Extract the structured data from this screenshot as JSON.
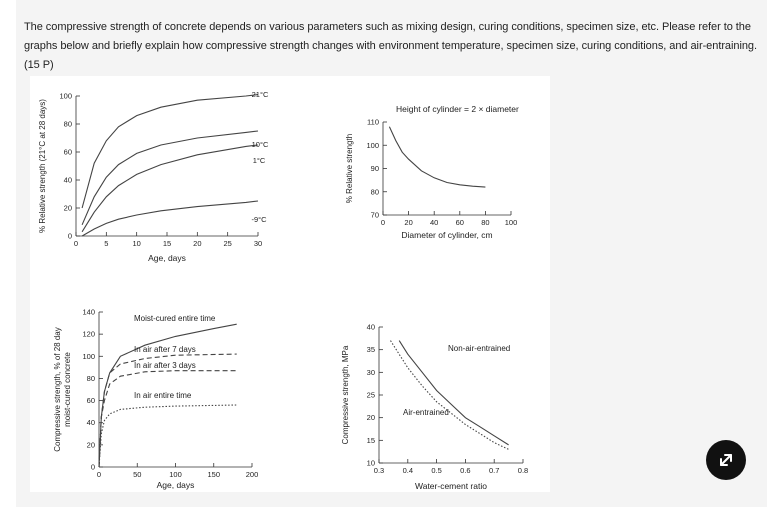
{
  "question": {
    "text": "The compressive strength of concrete depends on various parameters such as mixing design, curing conditions, specimen size, etc. Please refer to the graphs below and briefly explain how compressive strength changes with environment temperature, specimen size, curing conditions, and air-entraining. (15 P)"
  },
  "expand_button": {
    "icon": "expand-arrows-icon"
  },
  "chart_data": [
    {
      "type": "line",
      "ylabel": "% Relative strength (21°C at 28 days)",
      "xlabel": "Age, days",
      "xlim": [
        0,
        30
      ],
      "ylim": [
        0,
        100
      ],
      "xticks": [
        "0",
        "5",
        "10",
        "15",
        "20",
        "25",
        "30"
      ],
      "yticks": [
        "0",
        "20",
        "40",
        "60",
        "80",
        "100"
      ],
      "series": [
        {
          "name": "21°C",
          "points": [
            [
              1,
              20
            ],
            [
              3,
              52
            ],
            [
              5,
              68
            ],
            [
              7,
              78
            ],
            [
              10,
              86
            ],
            [
              14,
              92
            ],
            [
              20,
              97
            ],
            [
              28,
              100
            ],
            [
              30,
              101
            ]
          ]
        },
        {
          "name": "10°C",
          "points": [
            [
              1,
              8
            ],
            [
              3,
              28
            ],
            [
              5,
              42
            ],
            [
              7,
              51
            ],
            [
              10,
              59
            ],
            [
              14,
              65
            ],
            [
              20,
              70
            ],
            [
              28,
              74
            ],
            [
              30,
              75
            ]
          ]
        },
        {
          "name": "1°C",
          "points": [
            [
              1,
              3
            ],
            [
              3,
              17
            ],
            [
              5,
              28
            ],
            [
              7,
              36
            ],
            [
              10,
              44
            ],
            [
              14,
              51
            ],
            [
              20,
              58
            ],
            [
              28,
              64
            ],
            [
              30,
              65
            ]
          ]
        },
        {
          "name": "-9°C",
          "points": [
            [
              1,
              0
            ],
            [
              3,
              5
            ],
            [
              5,
              9
            ],
            [
              7,
              12
            ],
            [
              10,
              15
            ],
            [
              14,
              18
            ],
            [
              20,
              21
            ],
            [
              28,
              24
            ],
            [
              30,
              25
            ]
          ]
        }
      ]
    },
    {
      "type": "line",
      "title": "Height of cylinder = 2 × diameter",
      "ylabel": "% Relative strength",
      "xlabel": "Diameter of cylinder, cm",
      "xlim": [
        0,
        100
      ],
      "ylim": [
        70,
        110
      ],
      "xticks": [
        "0",
        "20",
        "40",
        "60",
        "80",
        "100"
      ],
      "yticks": [
        "70",
        "80",
        "90",
        "100",
        "110"
      ],
      "series": [
        {
          "name": "",
          "points": [
            [
              5,
              108
            ],
            [
              10,
              102
            ],
            [
              15,
              97
            ],
            [
              20,
              94
            ],
            [
              30,
              89
            ],
            [
              40,
              86
            ],
            [
              50,
              84
            ],
            [
              60,
              83
            ],
            [
              70,
              82.4
            ],
            [
              80,
              82
            ]
          ]
        }
      ]
    },
    {
      "type": "line",
      "ylabel": "Compressive strength, % of 28 day moist-cured concrete",
      "xlabel": "Age, days",
      "xlim": [
        0,
        200
      ],
      "ylim": [
        0,
        140
      ],
      "xticks": [
        "0",
        "50",
        "100",
        "150",
        "200"
      ],
      "yticks": [
        "0",
        "20",
        "40",
        "60",
        "80",
        "100",
        "120",
        "140"
      ],
      "series": [
        {
          "name": "Moist-cured entire time",
          "style": "solid",
          "points": [
            [
              0,
              0
            ],
            [
              3,
              45
            ],
            [
              7,
              68
            ],
            [
              14,
              85
            ],
            [
              28,
              100
            ],
            [
              60,
              110
            ],
            [
              100,
              118
            ],
            [
              150,
              125
            ],
            [
              180,
              129
            ]
          ]
        },
        {
          "name": "In air after 7 days",
          "style": "dashed",
          "points": [
            [
              0,
              0
            ],
            [
              3,
              45
            ],
            [
              7,
              68
            ],
            [
              14,
              85
            ],
            [
              28,
              93
            ],
            [
              60,
              98
            ],
            [
              100,
              101
            ],
            [
              180,
              102
            ]
          ]
        },
        {
          "name": "In air after 3 days",
          "style": "dashed",
          "points": [
            [
              0,
              0
            ],
            [
              3,
              45
            ],
            [
              7,
              60
            ],
            [
              14,
              75
            ],
            [
              28,
              82
            ],
            [
              60,
              86
            ],
            [
              100,
              87
            ],
            [
              180,
              87
            ]
          ]
        },
        {
          "name": "In air entire time",
          "style": "dotted",
          "points": [
            [
              0,
              0
            ],
            [
              3,
              30
            ],
            [
              7,
              42
            ],
            [
              14,
              48
            ],
            [
              28,
              52
            ],
            [
              60,
              54
            ],
            [
              100,
              55
            ],
            [
              180,
              56
            ]
          ]
        }
      ]
    },
    {
      "type": "line",
      "ylabel": "Compressive strength, MPa",
      "xlabel": "Water-cement ratio",
      "xlim": [
        0.3,
        0.8
      ],
      "ylim": [
        10,
        40
      ],
      "xticks": [
        "0.3",
        "0.4",
        "0.5",
        "0.6",
        "0.7",
        "0.8"
      ],
      "yticks": [
        "10",
        "15",
        "20",
        "25",
        "30",
        "35",
        "40"
      ],
      "series": [
        {
          "name": "Non-air-entrained",
          "style": "solid",
          "points": [
            [
              0.37,
              37
            ],
            [
              0.4,
              34
            ],
            [
              0.45,
              30
            ],
            [
              0.5,
              26
            ],
            [
              0.55,
              23
            ],
            [
              0.6,
              20
            ],
            [
              0.65,
              18
            ],
            [
              0.7,
              16
            ],
            [
              0.75,
              14
            ]
          ]
        },
        {
          "name": "Air-entrained",
          "style": "dotted",
          "points": [
            [
              0.34,
              37
            ],
            [
              0.4,
              31
            ],
            [
              0.45,
              27
            ],
            [
              0.5,
              23.5
            ],
            [
              0.55,
              21
            ],
            [
              0.6,
              18.5
            ],
            [
              0.65,
              16.5
            ],
            [
              0.7,
              14.5
            ],
            [
              0.75,
              13
            ]
          ]
        }
      ]
    }
  ]
}
